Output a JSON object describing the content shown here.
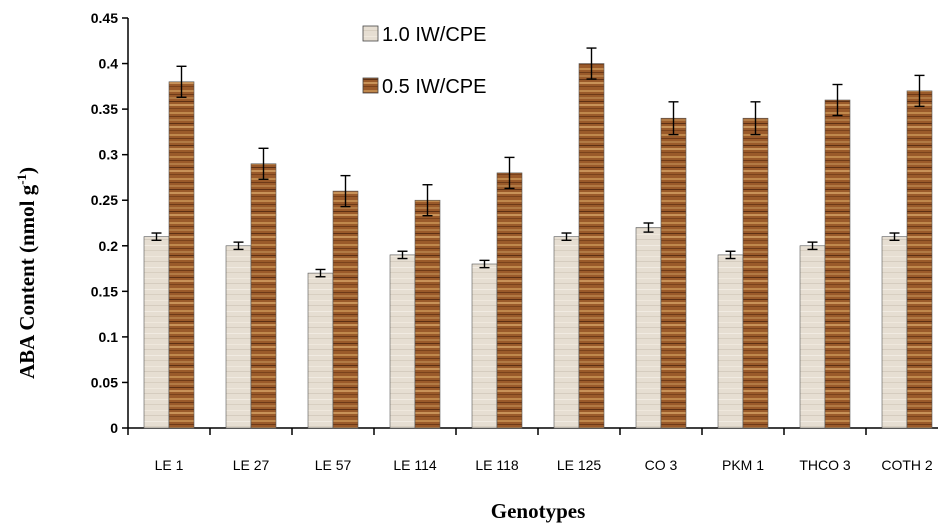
{
  "chart_data": {
    "type": "bar",
    "title": "",
    "xlabel": "Genotypes",
    "ylabel": "ABA Content (nmol g",
    "ylabel_superscript": "-1",
    "ylabel_suffix": ")",
    "ylim": [
      0,
      0.45
    ],
    "yticks": [
      "0",
      "0.05",
      "0.1",
      "0.15",
      "0.2",
      "0.25",
      "0.3",
      "0.35",
      "0.4",
      "0.45"
    ],
    "categories": [
      "LE 1",
      "LE 27",
      "LE 57",
      "LE 114",
      "LE 118",
      "LE 125",
      "CO 3",
      "PKM 1",
      "THCO 3",
      "COTH 2"
    ],
    "series": [
      {
        "name": "1.0 IW/CPE",
        "color": "#e6ded2",
        "values": [
          0.21,
          0.2,
          0.17,
          0.19,
          0.18,
          0.21,
          0.22,
          0.19,
          0.2,
          0.21
        ],
        "errors": [
          0.004,
          0.004,
          0.004,
          0.004,
          0.004,
          0.004,
          0.005,
          0.004,
          0.004,
          0.004
        ]
      },
      {
        "name": "0.5 IW/CPE",
        "color": "#9a5a2a",
        "values": [
          0.38,
          0.29,
          0.26,
          0.25,
          0.28,
          0.4,
          0.34,
          0.34,
          0.36,
          0.37
        ],
        "errors": [
          0.017,
          0.017,
          0.017,
          0.017,
          0.017,
          0.017,
          0.018,
          0.018,
          0.017,
          0.017
        ]
      }
    ],
    "error_bars": true,
    "grid": false,
    "legend_position": "top-center"
  }
}
